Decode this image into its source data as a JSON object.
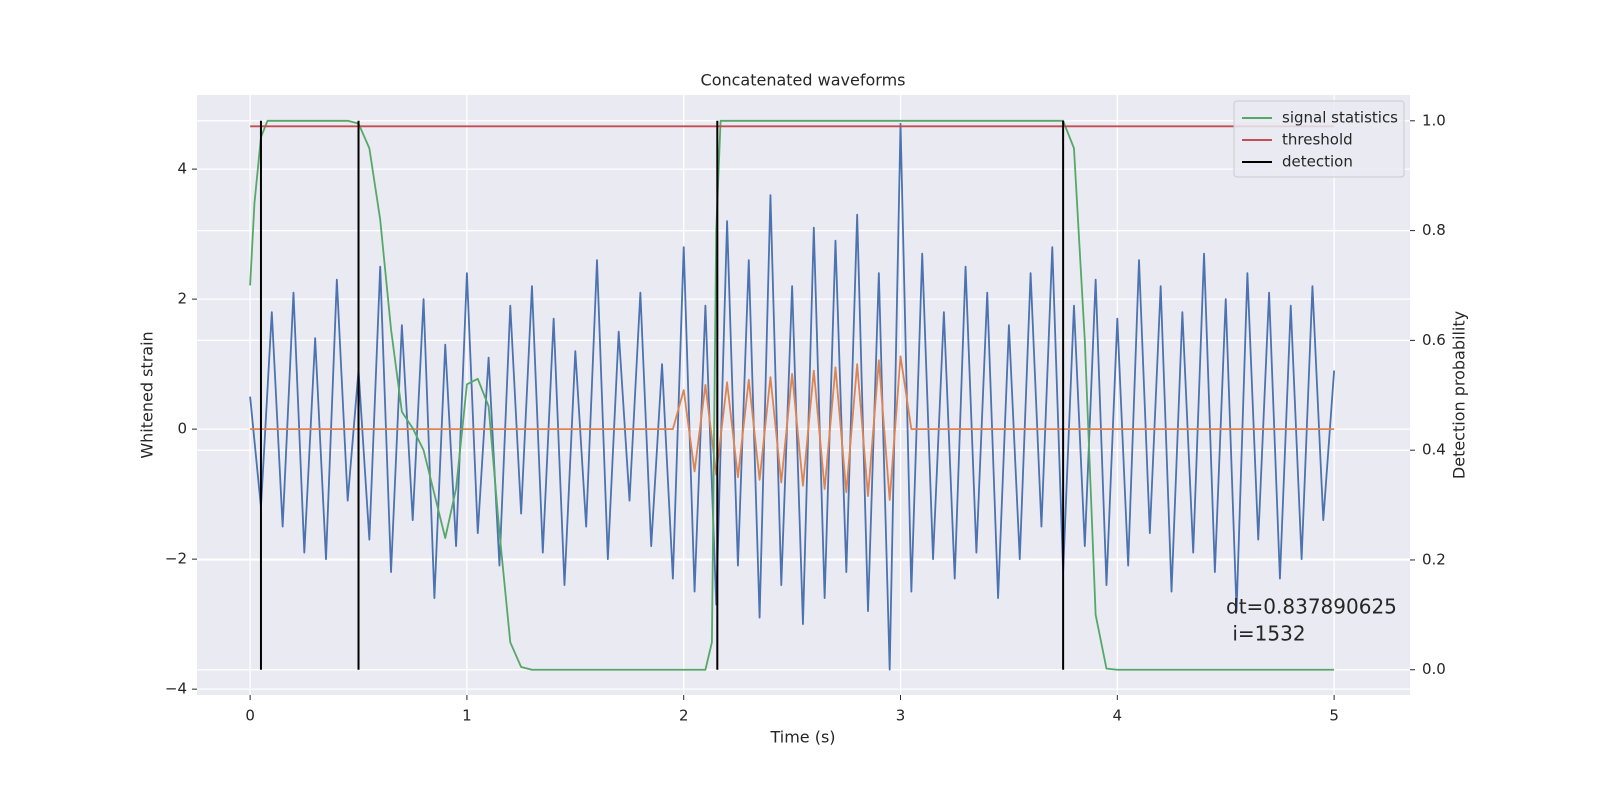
{
  "chart_data": {
    "type": "line",
    "title": "Concatenated waveforms",
    "xlabel": "Time (s)",
    "ylabel": "Whitened strain",
    "y2label": "Detection probability",
    "xlim": [
      -0.245,
      5.35
    ],
    "ylim": [
      -4.09,
      5.14
    ],
    "y2lim": [
      -0.046,
      1.047
    ],
    "xticks": [
      0,
      1,
      2,
      3,
      4,
      5
    ],
    "yticks": [
      {
        "value": -4,
        "label": "−4"
      },
      {
        "value": -2,
        "label": "−2"
      },
      0,
      2,
      4
    ],
    "y2ticks": [
      {
        "value": 0,
        "label": "0.0"
      },
      0.2,
      0.4,
      0.6,
      0.8,
      {
        "value": 1,
        "label": "1.0"
      }
    ],
    "grid": true,
    "legend": "upper right",
    "x": [
      0,
      0.05,
      0.1,
      0.15,
      0.2,
      0.25,
      0.3,
      0.35,
      0.4,
      0.45,
      0.5,
      0.55,
      0.6,
      0.65,
      0.7,
      0.75,
      0.8,
      0.85,
      0.9,
      0.95,
      1,
      1.05,
      1.1,
      1.15,
      1.2,
      1.25,
      1.3,
      1.35,
      1.4,
      1.45,
      1.5,
      1.55,
      1.6,
      1.65,
      1.7,
      1.75,
      1.8,
      1.85,
      1.9,
      1.95,
      2,
      2.05,
      2.1,
      2.15,
      2.2,
      2.25,
      2.3,
      2.35,
      2.4,
      2.45,
      2.5,
      2.55,
      2.6,
      2.65,
      2.7,
      2.75,
      2.8,
      2.85,
      2.9,
      2.95,
      3,
      3.05,
      3.1,
      3.15,
      3.2,
      3.25,
      3.3,
      3.35,
      3.4,
      3.45,
      3.5,
      3.55,
      3.6,
      3.65,
      3.7,
      3.75,
      3.8,
      3.85,
      3.9,
      3.95,
      4,
      4.05,
      4.1,
      4.15,
      4.2,
      4.25,
      4.3,
      4.35,
      4.4,
      4.45,
      4.5,
      4.55,
      4.6,
      4.65,
      4.7,
      4.75,
      4.8,
      4.85,
      4.9,
      4.95,
      5
    ],
    "series": [
      {
        "color": "#4c72b0",
        "values": [
          0.5,
          -1.2,
          1.8,
          -1.5,
          2.1,
          -1.9,
          1.4,
          -2.0,
          2.3,
          -1.1,
          0.9,
          -1.7,
          2.5,
          -2.2,
          1.6,
          -1.4,
          2.0,
          -2.6,
          1.3,
          -1.8,
          2.4,
          -1.6,
          1.1,
          -2.1,
          1.9,
          -1.3,
          2.2,
          -1.9,
          1.7,
          -2.4,
          1.2,
          -1.5,
          2.6,
          -2.0,
          1.5,
          -1.1,
          2.1,
          -1.8,
          1.0,
          -2.3,
          2.8,
          -2.5,
          1.9,
          -2.7,
          3.2,
          -2.1,
          2.6,
          -2.9,
          3.6,
          -2.4,
          2.2,
          -3.0,
          3.1,
          -2.6,
          2.9,
          -2.2,
          3.3,
          -2.8,
          2.4,
          -3.7,
          4.7,
          -2.5,
          2.7,
          -2.0,
          1.8,
          -2.3,
          2.5,
          -1.9,
          2.1,
          -2.6,
          1.6,
          -2.0,
          2.4,
          -1.5,
          2.8,
          -2.2,
          1.9,
          -1.8,
          2.3,
          -2.4,
          1.7,
          -2.1,
          2.6,
          -1.6,
          2.2,
          -2.5,
          1.8,
          -1.9,
          2.7,
          -2.2,
          2.0,
          -2.8,
          2.4,
          -1.7,
          2.1,
          -2.3,
          1.9,
          -2.0,
          2.2,
          -1.4,
          0.9
        ]
      },
      {
        "color": "#dd8452",
        "values": [
          0,
          0,
          0,
          0,
          0,
          0,
          0,
          0,
          0,
          0,
          0,
          0,
          0,
          0,
          0,
          0,
          0,
          0,
          0,
          0,
          0,
          0,
          0,
          0,
          0,
          0,
          0,
          0,
          0,
          0,
          0,
          0,
          0,
          0,
          0,
          0,
          0,
          0,
          0,
          0,
          0.6,
          -0.65,
          0.68,
          -0.7,
          0.72,
          -0.74,
          0.76,
          -0.78,
          0.8,
          -0.82,
          0.85,
          -0.87,
          0.9,
          -0.92,
          0.95,
          -0.97,
          1.0,
          -1.03,
          1.06,
          -1.09,
          1.12,
          0,
          0,
          0,
          0,
          0,
          0,
          0,
          0,
          0,
          0,
          0,
          0,
          0,
          0,
          0,
          0,
          0,
          0,
          0,
          0,
          0,
          0,
          0,
          0,
          0,
          0,
          0,
          0,
          0,
          0,
          0,
          0,
          0,
          0,
          0,
          0,
          0,
          0,
          0,
          0
        ]
      },
      {
        "name": "signal statistics",
        "color": "#55a868",
        "axis": "y2",
        "x": [
          0,
          0.02,
          0.05,
          0.08,
          0.45,
          0.5,
          0.55,
          0.6,
          0.65,
          0.7,
          0.75,
          0.8,
          0.85,
          0.9,
          0.95,
          1.0,
          1.05,
          1.1,
          1.15,
          1.2,
          1.25,
          1.3,
          2.1,
          2.13,
          2.15,
          2.17,
          3.75,
          3.8,
          3.85,
          3.9,
          3.95,
          4.0,
          5.0
        ],
        "values": [
          0.7,
          0.85,
          0.97,
          1.0,
          1.0,
          0.995,
          0.95,
          0.82,
          0.62,
          0.47,
          0.44,
          0.4,
          0.32,
          0.24,
          0.33,
          0.52,
          0.53,
          0.48,
          0.25,
          0.05,
          0.005,
          0.0,
          0.0,
          0.05,
          0.8,
          1.0,
          1.0,
          0.95,
          0.6,
          0.1,
          0.002,
          0.0,
          0.0
        ]
      },
      {
        "name": "threshold",
        "color": "#c44e52",
        "axis": "y2",
        "x": [
          0,
          5
        ],
        "values": [
          0.99,
          0.99
        ]
      }
    ],
    "detections": {
      "name": "detection",
      "color": "#000000",
      "x": [
        0.05,
        0.5,
        2.155,
        3.75
      ]
    },
    "annotation": [
      "dt=0.837890625",
      " i=1532"
    ]
  }
}
